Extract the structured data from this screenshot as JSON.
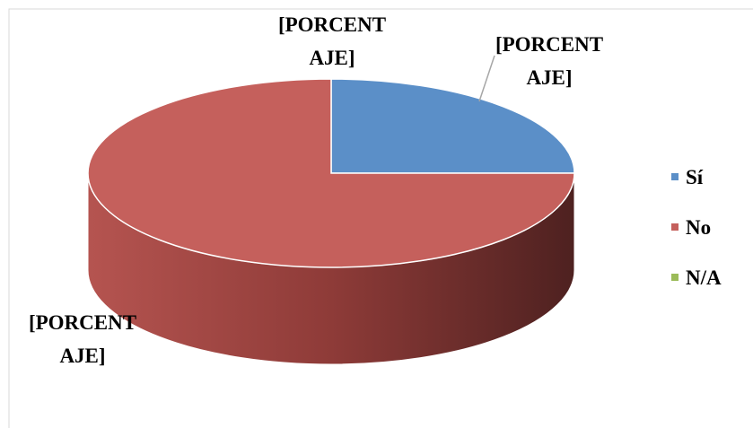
{
  "chart_data": {
    "type": "pie",
    "categories": [
      "Sí",
      "No",
      "N/A"
    ],
    "values": [
      25,
      75,
      0
    ],
    "value_labels": [
      "[PORCENTAJE]",
      "[PORCENTAJE]",
      "[PORCENTAJE]"
    ],
    "colors": [
      "#5b8fc8",
      "#c5605c",
      "#9bbb59"
    ],
    "legend": "right"
  }
}
